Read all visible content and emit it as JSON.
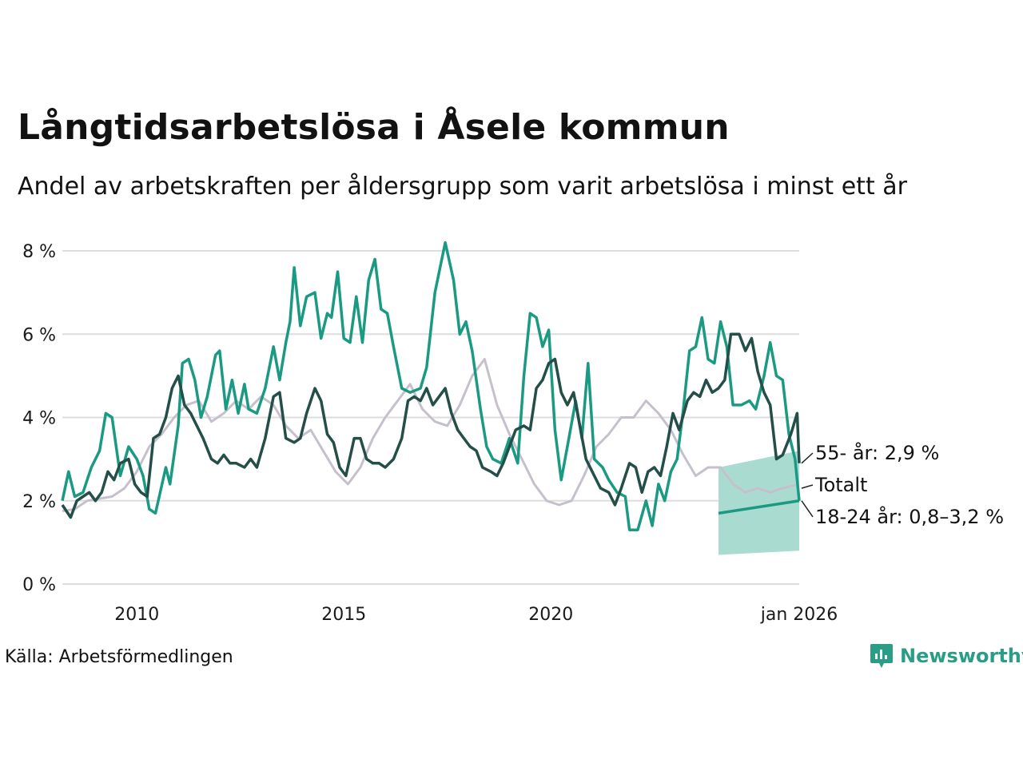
{
  "title": "Långtidsarbetslösa i Åsele kommun",
  "subtitle": "Andel av arbetskraften per åldersgrupp som varit arbetslösa i minst ett år",
  "source": "Källa: Arbetsförmedlingen",
  "brand": "Newsworthy",
  "colors": {
    "young": "#1b9a83",
    "old": "#244e48",
    "total": "#c6c0cc",
    "band": "#a4d9cf",
    "grid": "#dddddd"
  },
  "chart_data": {
    "type": "line",
    "xlim": [
      2008.2,
      2026.0
    ],
    "ylim": [
      0,
      8
    ],
    "yticks": [
      0,
      2,
      4,
      6,
      8
    ],
    "ytick_labels": [
      "0 %",
      "2 %",
      "4 %",
      "6 %",
      "8 %"
    ],
    "xticks": [
      2010,
      2015,
      2020,
      2026.0
    ],
    "xtick_labels": [
      "2010",
      "2015",
      "2020",
      "jan 2026"
    ],
    "series": [
      {
        "name": "Totalt",
        "label": "Totalt",
        "key": "total",
        "points": [
          [
            2008.2,
            1.75
          ],
          [
            2008.5,
            1.8
          ],
          [
            2008.8,
            2.0
          ],
          [
            2009.1,
            2.05
          ],
          [
            2009.4,
            2.1
          ],
          [
            2009.7,
            2.3
          ],
          [
            2010.0,
            2.7
          ],
          [
            2010.3,
            3.3
          ],
          [
            2010.6,
            3.6
          ],
          [
            2010.9,
            4.0
          ],
          [
            2011.2,
            4.3
          ],
          [
            2011.5,
            4.4
          ],
          [
            2011.8,
            3.9
          ],
          [
            2012.1,
            4.1
          ],
          [
            2012.4,
            4.4
          ],
          [
            2012.7,
            4.2
          ],
          [
            2013.0,
            4.5
          ],
          [
            2013.3,
            4.3
          ],
          [
            2013.6,
            3.8
          ],
          [
            2013.9,
            3.5
          ],
          [
            2014.2,
            3.7
          ],
          [
            2014.5,
            3.2
          ],
          [
            2014.8,
            2.7
          ],
          [
            2015.1,
            2.4
          ],
          [
            2015.4,
            2.8
          ],
          [
            2015.7,
            3.5
          ],
          [
            2016.0,
            4.0
          ],
          [
            2016.3,
            4.4
          ],
          [
            2016.6,
            4.8
          ],
          [
            2016.9,
            4.2
          ],
          [
            2017.2,
            3.9
          ],
          [
            2017.5,
            3.8
          ],
          [
            2017.8,
            4.3
          ],
          [
            2018.1,
            5.0
          ],
          [
            2018.4,
            5.4
          ],
          [
            2018.7,
            4.3
          ],
          [
            2019.0,
            3.6
          ],
          [
            2019.3,
            3.0
          ],
          [
            2019.6,
            2.4
          ],
          [
            2019.9,
            2.0
          ],
          [
            2020.2,
            1.9
          ],
          [
            2020.5,
            2.0
          ],
          [
            2020.8,
            2.6
          ],
          [
            2021.1,
            3.3
          ],
          [
            2021.4,
            3.6
          ],
          [
            2021.7,
            4.0
          ],
          [
            2022.0,
            4.0
          ],
          [
            2022.3,
            4.4
          ],
          [
            2022.6,
            4.1
          ],
          [
            2022.9,
            3.7
          ],
          [
            2023.2,
            3.1
          ],
          [
            2023.5,
            2.6
          ],
          [
            2023.8,
            2.8
          ],
          [
            2024.1,
            2.8
          ],
          [
            2024.4,
            2.4
          ],
          [
            2024.7,
            2.2
          ],
          [
            2025.0,
            2.3
          ],
          [
            2025.3,
            2.2
          ],
          [
            2025.6,
            2.3
          ],
          [
            2026.0,
            2.4
          ]
        ]
      },
      {
        "name": "18-24 år",
        "label": "18-24 år: 0,8–3,2 %",
        "key": "young",
        "points": [
          [
            2008.2,
            2.0
          ],
          [
            2008.35,
            2.7
          ],
          [
            2008.5,
            2.1
          ],
          [
            2008.7,
            2.2
          ],
          [
            2008.9,
            2.8
          ],
          [
            2009.1,
            3.2
          ],
          [
            2009.25,
            4.1
          ],
          [
            2009.4,
            4.0
          ],
          [
            2009.6,
            2.6
          ],
          [
            2009.8,
            3.3
          ],
          [
            2010.0,
            3.0
          ],
          [
            2010.15,
            2.6
          ],
          [
            2010.3,
            1.8
          ],
          [
            2010.45,
            1.7
          ],
          [
            2010.7,
            2.8
          ],
          [
            2010.8,
            2.4
          ],
          [
            2011.0,
            3.8
          ],
          [
            2011.1,
            5.3
          ],
          [
            2011.25,
            5.4
          ],
          [
            2011.4,
            4.9
          ],
          [
            2011.55,
            4.0
          ],
          [
            2011.7,
            4.5
          ],
          [
            2011.9,
            5.5
          ],
          [
            2012.0,
            5.6
          ],
          [
            2012.15,
            4.2
          ],
          [
            2012.3,
            4.9
          ],
          [
            2012.45,
            4.1
          ],
          [
            2012.6,
            4.8
          ],
          [
            2012.7,
            4.2
          ],
          [
            2012.9,
            4.1
          ],
          [
            2013.1,
            4.7
          ],
          [
            2013.3,
            5.7
          ],
          [
            2013.45,
            4.9
          ],
          [
            2013.6,
            5.8
          ],
          [
            2013.7,
            6.3
          ],
          [
            2013.8,
            7.6
          ],
          [
            2013.95,
            6.2
          ],
          [
            2014.1,
            6.9
          ],
          [
            2014.3,
            7.0
          ],
          [
            2014.45,
            5.9
          ],
          [
            2014.6,
            6.5
          ],
          [
            2014.7,
            6.4
          ],
          [
            2014.85,
            7.5
          ],
          [
            2015.0,
            5.9
          ],
          [
            2015.15,
            5.8
          ],
          [
            2015.3,
            6.9
          ],
          [
            2015.45,
            5.8
          ],
          [
            2015.6,
            7.3
          ],
          [
            2015.75,
            7.8
          ],
          [
            2015.9,
            6.6
          ],
          [
            2016.05,
            6.5
          ],
          [
            2016.2,
            5.7
          ],
          [
            2016.4,
            4.7
          ],
          [
            2016.6,
            4.6
          ],
          [
            2016.85,
            4.7
          ],
          [
            2017.0,
            5.2
          ],
          [
            2017.2,
            7.0
          ],
          [
            2017.45,
            8.2
          ],
          [
            2017.65,
            7.3
          ],
          [
            2017.8,
            6.0
          ],
          [
            2017.95,
            6.3
          ],
          [
            2018.1,
            5.6
          ],
          [
            2018.3,
            4.2
          ],
          [
            2018.45,
            3.3
          ],
          [
            2018.6,
            3.0
          ],
          [
            2018.8,
            2.9
          ],
          [
            2019.0,
            3.5
          ],
          [
            2019.2,
            2.9
          ],
          [
            2019.35,
            5.0
          ],
          [
            2019.5,
            6.5
          ],
          [
            2019.65,
            6.4
          ],
          [
            2019.8,
            5.7
          ],
          [
            2019.95,
            6.1
          ],
          [
            2020.1,
            3.7
          ],
          [
            2020.25,
            2.5
          ],
          [
            2020.4,
            3.3
          ],
          [
            2020.6,
            4.4
          ],
          [
            2020.75,
            3.5
          ],
          [
            2020.9,
            5.3
          ],
          [
            2021.05,
            3.0
          ],
          [
            2021.25,
            2.8
          ],
          [
            2021.4,
            2.5
          ],
          [
            2021.6,
            2.2
          ],
          [
            2021.8,
            2.1
          ],
          [
            2021.9,
            1.3
          ],
          [
            2022.1,
            1.3
          ],
          [
            2022.3,
            2.0
          ],
          [
            2022.45,
            1.4
          ],
          [
            2022.6,
            2.4
          ],
          [
            2022.75,
            2.0
          ],
          [
            2022.9,
            2.7
          ],
          [
            2023.05,
            3.0
          ],
          [
            2023.2,
            4.2
          ],
          [
            2023.35,
            5.6
          ],
          [
            2023.5,
            5.7
          ],
          [
            2023.65,
            6.4
          ],
          [
            2023.8,
            5.4
          ],
          [
            2023.95,
            5.3
          ],
          [
            2024.1,
            6.3
          ],
          [
            2024.25,
            5.7
          ],
          [
            2024.4,
            4.3
          ],
          [
            2024.6,
            4.3
          ],
          [
            2024.8,
            4.4
          ],
          [
            2024.95,
            4.2
          ],
          [
            2025.15,
            5.0
          ],
          [
            2025.3,
            5.8
          ],
          [
            2025.45,
            5.0
          ],
          [
            2025.6,
            4.9
          ],
          [
            2025.75,
            3.6
          ],
          [
            2025.9,
            3.0
          ],
          [
            2026.0,
            2.0
          ]
        ]
      },
      {
        "name": "55- år",
        "label": "55- år: 2,9 %",
        "key": "old",
        "points": [
          [
            2008.2,
            1.9
          ],
          [
            2008.4,
            1.6
          ],
          [
            2008.55,
            2.0
          ],
          [
            2008.7,
            2.1
          ],
          [
            2008.85,
            2.2
          ],
          [
            2009.0,
            2.0
          ],
          [
            2009.15,
            2.2
          ],
          [
            2009.3,
            2.7
          ],
          [
            2009.45,
            2.5
          ],
          [
            2009.6,
            2.9
          ],
          [
            2009.8,
            3.0
          ],
          [
            2009.95,
            2.4
          ],
          [
            2010.1,
            2.2
          ],
          [
            2010.25,
            2.1
          ],
          [
            2010.4,
            3.5
          ],
          [
            2010.55,
            3.6
          ],
          [
            2010.7,
            4.0
          ],
          [
            2010.85,
            4.7
          ],
          [
            2011.0,
            5.0
          ],
          [
            2011.15,
            4.3
          ],
          [
            2011.3,
            4.1
          ],
          [
            2011.45,
            3.8
          ],
          [
            2011.6,
            3.5
          ],
          [
            2011.8,
            3.0
          ],
          [
            2011.95,
            2.9
          ],
          [
            2012.1,
            3.1
          ],
          [
            2012.25,
            2.9
          ],
          [
            2012.4,
            2.9
          ],
          [
            2012.6,
            2.8
          ],
          [
            2012.75,
            3.0
          ],
          [
            2012.9,
            2.8
          ],
          [
            2013.1,
            3.5
          ],
          [
            2013.3,
            4.5
          ],
          [
            2013.45,
            4.6
          ],
          [
            2013.6,
            3.5
          ],
          [
            2013.8,
            3.4
          ],
          [
            2013.95,
            3.5
          ],
          [
            2014.1,
            4.1
          ],
          [
            2014.3,
            4.7
          ],
          [
            2014.45,
            4.4
          ],
          [
            2014.6,
            3.6
          ],
          [
            2014.75,
            3.4
          ],
          [
            2014.9,
            2.8
          ],
          [
            2015.05,
            2.6
          ],
          [
            2015.25,
            3.5
          ],
          [
            2015.4,
            3.5
          ],
          [
            2015.55,
            3.0
          ],
          [
            2015.7,
            2.9
          ],
          [
            2015.85,
            2.9
          ],
          [
            2016.0,
            2.8
          ],
          [
            2016.2,
            3.0
          ],
          [
            2016.4,
            3.5
          ],
          [
            2016.55,
            4.4
          ],
          [
            2016.7,
            4.5
          ],
          [
            2016.85,
            4.4
          ],
          [
            2017.0,
            4.7
          ],
          [
            2017.15,
            4.3
          ],
          [
            2017.3,
            4.5
          ],
          [
            2017.45,
            4.7
          ],
          [
            2017.6,
            4.1
          ],
          [
            2017.75,
            3.7
          ],
          [
            2017.9,
            3.5
          ],
          [
            2018.05,
            3.3
          ],
          [
            2018.2,
            3.2
          ],
          [
            2018.35,
            2.8
          ],
          [
            2018.55,
            2.7
          ],
          [
            2018.7,
            2.6
          ],
          [
            2018.85,
            2.9
          ],
          [
            2019.0,
            3.3
          ],
          [
            2019.15,
            3.7
          ],
          [
            2019.35,
            3.8
          ],
          [
            2019.5,
            3.7
          ],
          [
            2019.65,
            4.7
          ],
          [
            2019.8,
            4.9
          ],
          [
            2019.95,
            5.3
          ],
          [
            2020.1,
            5.4
          ],
          [
            2020.25,
            4.6
          ],
          [
            2020.4,
            4.3
          ],
          [
            2020.55,
            4.6
          ],
          [
            2020.7,
            3.8
          ],
          [
            2020.85,
            3.0
          ],
          [
            2021.0,
            2.7
          ],
          [
            2021.2,
            2.3
          ],
          [
            2021.4,
            2.2
          ],
          [
            2021.55,
            1.9
          ],
          [
            2021.7,
            2.3
          ],
          [
            2021.9,
            2.9
          ],
          [
            2022.05,
            2.8
          ],
          [
            2022.2,
            2.2
          ],
          [
            2022.35,
            2.7
          ],
          [
            2022.5,
            2.8
          ],
          [
            2022.65,
            2.6
          ],
          [
            2022.8,
            3.3
          ],
          [
            2022.95,
            4.1
          ],
          [
            2023.1,
            3.7
          ],
          [
            2023.3,
            4.4
          ],
          [
            2023.45,
            4.6
          ],
          [
            2023.6,
            4.5
          ],
          [
            2023.75,
            4.9
          ],
          [
            2023.9,
            4.6
          ],
          [
            2024.05,
            4.7
          ],
          [
            2024.2,
            4.9
          ],
          [
            2024.35,
            6.0
          ],
          [
            2024.55,
            6.0
          ],
          [
            2024.7,
            5.6
          ],
          [
            2024.85,
            5.9
          ],
          [
            2025.0,
            5.1
          ],
          [
            2025.15,
            4.6
          ],
          [
            2025.3,
            4.3
          ],
          [
            2025.45,
            3.0
          ],
          [
            2025.6,
            3.1
          ],
          [
            2025.8,
            3.6
          ],
          [
            2025.95,
            4.1
          ],
          [
            2026.0,
            2.9
          ]
        ]
      }
    ],
    "forecast_band": {
      "name": "18-24 år",
      "x_start": 2024.05,
      "x_end": 2026.0,
      "lower_start": 0.7,
      "lower_end": 0.8,
      "upper_start": 2.8,
      "upper_end": 3.2,
      "mid_start": 1.7,
      "mid_end": 2.0
    },
    "end_labels": [
      "55- år: 2,9 %",
      "Totalt",
      "18-24 år: 0,8–3,2 %"
    ]
  }
}
